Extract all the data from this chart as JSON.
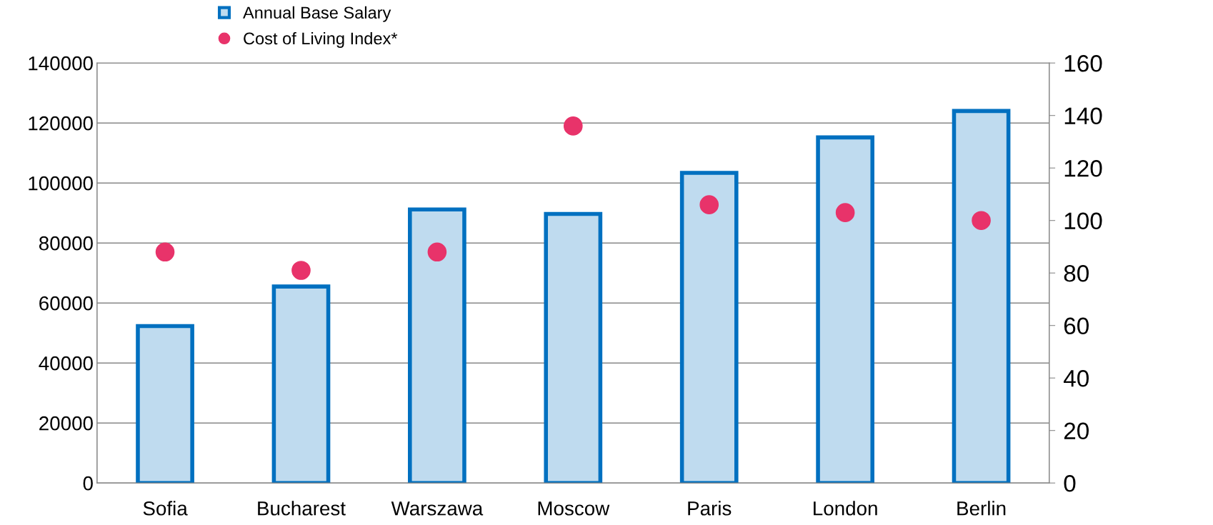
{
  "chart_data": {
    "type": "bar",
    "categories": [
      "Sofia",
      "Bucharest",
      "Warszawa",
      "Moscow",
      "Paris",
      "London",
      "Berlin"
    ],
    "series": [
      {
        "name": "Annual Base Salary",
        "color": "#0070c0",
        "values": [
          52300,
          65500,
          91200,
          89700,
          103400,
          115200,
          124000
        ]
      },
      {
        "name": "Cost of Living Index*",
        "type": "scatter",
        "axis": "y2",
        "color": "#e8336a",
        "values": [
          88,
          81,
          88,
          136,
          106,
          103,
          100
        ]
      }
    ],
    "ylim": [
      0,
      140000
    ],
    "yticks": [
      0,
      20000,
      40000,
      60000,
      80000,
      100000,
      120000,
      140000
    ],
    "y2lim": [
      0,
      160
    ],
    "y2ticks": [
      0,
      20,
      40,
      60,
      80,
      100,
      120,
      140,
      160
    ],
    "grid": "y",
    "legend": "top left",
    "marker": "circle"
  }
}
